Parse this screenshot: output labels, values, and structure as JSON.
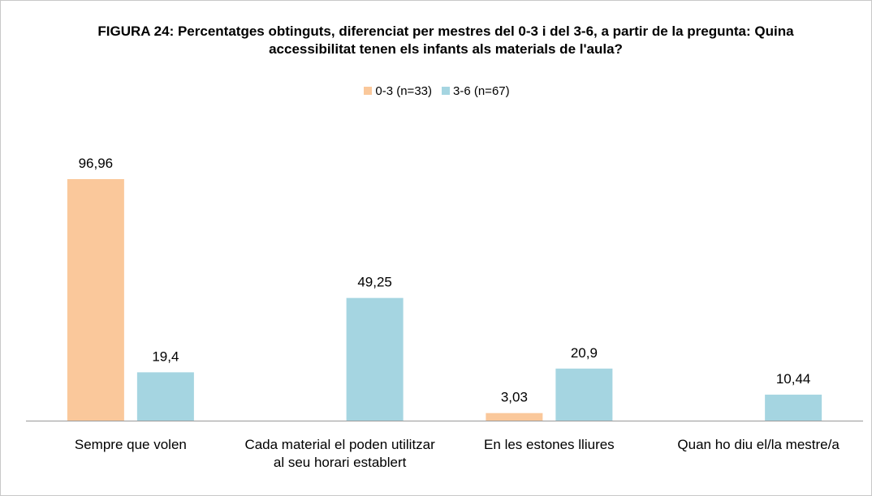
{
  "chart_data": {
    "type": "bar",
    "title": "FIGURA 24: Percentatges obtinguts, diferenciat per mestres del 0-3 i del 3-6,  a partir de la pregunta: Quina accessibilitat tenen els infants als materials de l'aula?",
    "categories": [
      "Sempre que volen",
      "Cada material el poden utilitzar al seu horari establert",
      "En les estones lliures",
      "Quan ho diu el/la mestre/a"
    ],
    "series": [
      {
        "name": "0-3 (n=33)",
        "color": "#fac89b",
        "values": [
          96.96,
          null,
          3.03,
          null
        ],
        "value_labels": [
          "96,96",
          null,
          "3,03",
          null
        ]
      },
      {
        "name": "3-6 (n=67)",
        "color": "#a5d5e1",
        "values": [
          19.4,
          49.25,
          20.9,
          10.44
        ],
        "value_labels": [
          "19,4",
          "49,25",
          "20,9",
          "10,44"
        ]
      }
    ]
  }
}
